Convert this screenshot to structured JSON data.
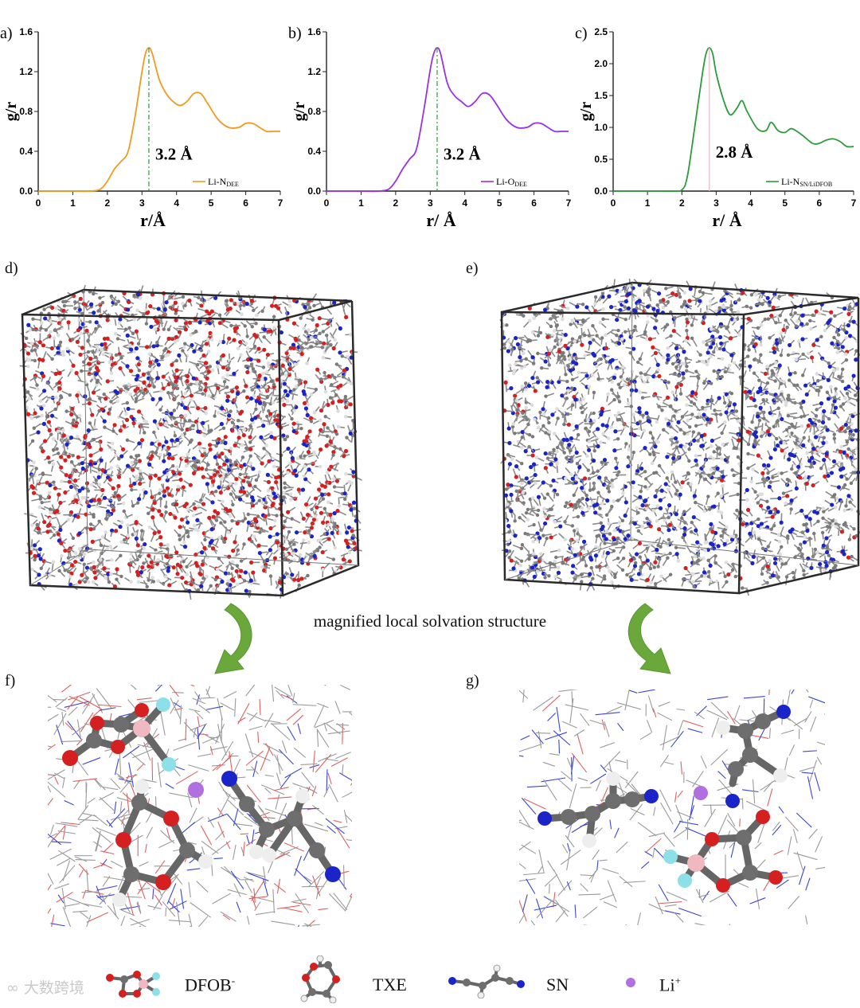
{
  "charts": [
    {
      "panel": "a)",
      "ylabel": "g/r",
      "xlabel": "r/Å",
      "xlim": [
        0,
        7
      ],
      "ylim": [
        0,
        1.6
      ],
      "xticks": [
        0,
        1,
        2,
        3,
        4,
        5,
        6,
        7
      ],
      "yticks": [
        "0.0",
        "0.4",
        "0.8",
        "1.2",
        "1.6"
      ],
      "yticks_values": [
        0,
        0.4,
        0.8,
        1.2,
        1.6
      ],
      "series_name": "Li-N",
      "series_sub": "DEE",
      "color": "#f29a1f",
      "peak_label": "3.2 Å",
      "peak_x": 3.2,
      "x": [
        0,
        0.5,
        1.0,
        1.5,
        1.8,
        2.0,
        2.2,
        2.4,
        2.6,
        2.8,
        3.0,
        3.1,
        3.2,
        3.3,
        3.5,
        3.7,
        3.9,
        4.1,
        4.3,
        4.5,
        4.7,
        4.9,
        5.2,
        5.5,
        5.8,
        6.0,
        6.2,
        6.4,
        6.6,
        6.8,
        7.0
      ],
      "y": [
        0,
        0,
        0,
        0,
        0.02,
        0.1,
        0.22,
        0.3,
        0.4,
        0.75,
        1.2,
        1.38,
        1.44,
        1.38,
        1.12,
        0.98,
        0.9,
        0.86,
        0.9,
        0.98,
        0.98,
        0.88,
        0.72,
        0.64,
        0.64,
        0.68,
        0.68,
        0.64,
        0.6,
        0.6,
        0.6
      ]
    },
    {
      "panel": "b)",
      "ylabel": "g/r",
      "xlabel": "r/ Å",
      "xlim": [
        0,
        7
      ],
      "ylim": [
        0,
        1.6
      ],
      "xticks": [
        0,
        1,
        2,
        3,
        4,
        5,
        6,
        7
      ],
      "yticks": [
        "0.0",
        "0.4",
        "0.8",
        "1.2",
        "1.6"
      ],
      "yticks_values": [
        0,
        0.4,
        0.8,
        1.2,
        1.6
      ],
      "series_name": "Li-O",
      "series_sub": "DEE",
      "color": "#9b30e6",
      "peak_label": "3.2 Å",
      "peak_x": 3.2,
      "x": [
        0,
        0.5,
        1.0,
        1.5,
        1.8,
        2.0,
        2.2,
        2.4,
        2.6,
        2.8,
        3.0,
        3.1,
        3.2,
        3.3,
        3.5,
        3.7,
        3.9,
        4.1,
        4.3,
        4.5,
        4.7,
        4.9,
        5.2,
        5.5,
        5.8,
        6.0,
        6.2,
        6.4,
        6.6,
        6.8,
        7.0
      ],
      "y": [
        0,
        0,
        0,
        0,
        0.02,
        0.1,
        0.22,
        0.32,
        0.42,
        0.78,
        1.22,
        1.38,
        1.44,
        1.38,
        1.08,
        0.96,
        0.9,
        0.85,
        0.9,
        0.98,
        0.97,
        0.88,
        0.72,
        0.64,
        0.64,
        0.68,
        0.68,
        0.64,
        0.6,
        0.6,
        0.6
      ]
    },
    {
      "panel": "c)",
      "ylabel": "g/r",
      "xlabel": "r/ Å",
      "xlim": [
        0,
        7
      ],
      "ylim": [
        0,
        2.5
      ],
      "xticks": [
        0,
        1,
        2,
        3,
        4,
        5,
        6,
        7
      ],
      "yticks": [
        "0.0",
        "0.5",
        "1.0",
        "1.5",
        "2.0",
        "2.5"
      ],
      "yticks_values": [
        0,
        0.5,
        1.0,
        1.5,
        2.0,
        2.5
      ],
      "series_name": "Li-N",
      "series_sub": "SN/LiDFOB",
      "color": "#2e9a3c",
      "peak_label": "2.8 Å",
      "peak_x": 2.8,
      "x": [
        0,
        0.5,
        1.0,
        1.5,
        1.9,
        2.0,
        2.1,
        2.2,
        2.4,
        2.6,
        2.7,
        2.8,
        2.9,
        3.0,
        3.2,
        3.4,
        3.6,
        3.75,
        3.9,
        4.2,
        4.45,
        4.6,
        4.8,
        5.0,
        5.2,
        5.5,
        5.8,
        6.0,
        6.2,
        6.4,
        6.6,
        6.8,
        7.0
      ],
      "y": [
        0,
        0,
        0,
        0,
        0,
        0.02,
        0.1,
        0.35,
        1.1,
        1.85,
        2.15,
        2.25,
        2.15,
        1.85,
        1.45,
        1.2,
        1.3,
        1.42,
        1.25,
        0.98,
        0.95,
        1.08,
        0.95,
        0.92,
        0.98,
        0.88,
        0.75,
        0.75,
        0.8,
        0.82,
        0.78,
        0.7,
        0.7
      ]
    }
  ],
  "panels": {
    "d": "d)",
    "e": "e)",
    "f": "f)",
    "g": "g)"
  },
  "caption": "magnified local solvation structure",
  "legend": {
    "dfob": "DFOB",
    "dfob_sup": "-",
    "txe": "TXE",
    "sn": "SN",
    "li": "Li",
    "li_sup": "+"
  },
  "watermark": "大数跨境",
  "colors": {
    "oxygen": "#d42020",
    "nitrogen": "#1a24c8",
    "carbon": "#7a7a7a",
    "hydrogen": "#eeeeee",
    "boron": "#f0b8c0",
    "fluorine": "#8ee0e8",
    "lithium": "#b070e0",
    "arrow": "#6aa83c"
  }
}
